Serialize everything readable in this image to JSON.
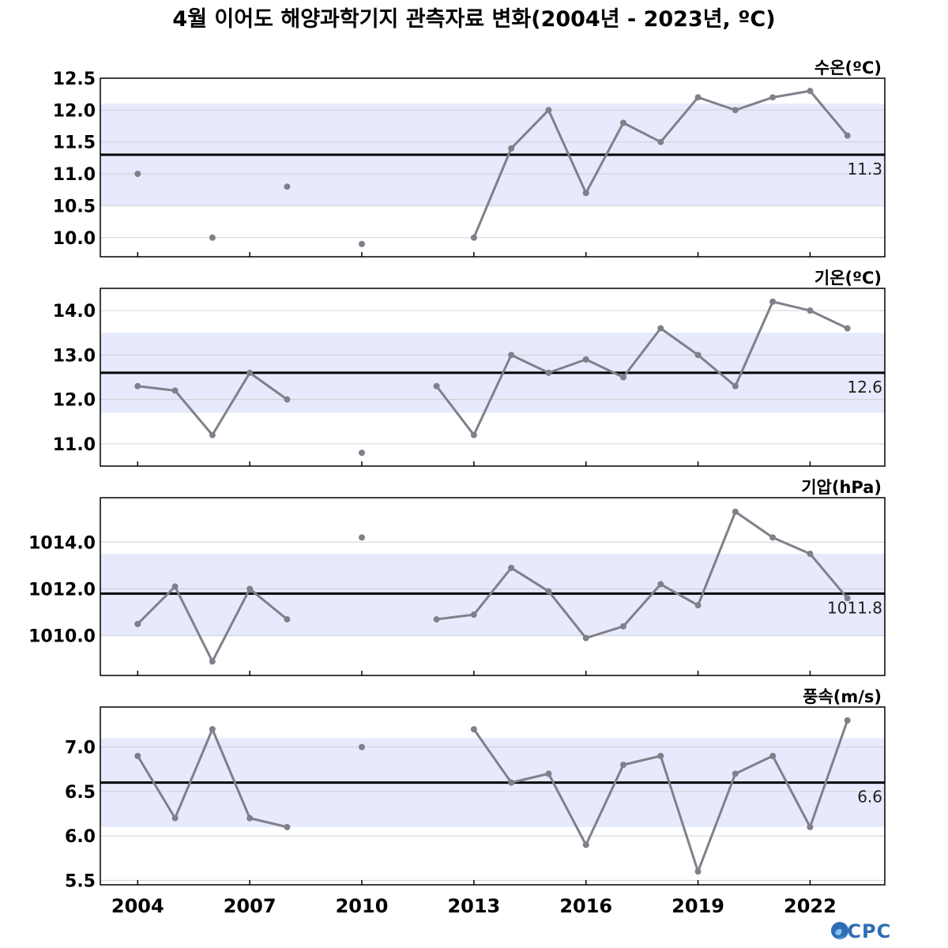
{
  "title": "4월 이어도 해양과학기지 관측자료 변화(2004년 - 2023년, ºC)",
  "logo": "OCPC",
  "colors": {
    "line": "#80808a",
    "point": "#80808a",
    "band": "#e6eafc",
    "mean": "#000000",
    "grid": "#d0d0d0"
  },
  "chart_data": [
    {
      "type": "line",
      "label": "수온(ºC)",
      "x": [
        2004,
        2005,
        2006,
        2007,
        2008,
        2009,
        2010,
        2011,
        2012,
        2013,
        2014,
        2015,
        2016,
        2017,
        2018,
        2019,
        2020,
        2021,
        2022,
        2023
      ],
      "values": [
        11.0,
        null,
        10.0,
        null,
        10.8,
        null,
        9.9,
        null,
        null,
        10.0,
        11.4,
        12.0,
        10.7,
        11.8,
        11.5,
        12.2,
        12.0,
        12.2,
        12.3,
        11.6
      ],
      "mean": 11.3,
      "mean_label": "11.3",
      "band": [
        10.5,
        12.1
      ],
      "ylim": [
        9.7,
        12.5
      ],
      "yticks": [
        10.0,
        10.5,
        11.0,
        11.5,
        12.0,
        12.5
      ],
      "ytick_labels": [
        "10.0",
        "10.5",
        "11.0",
        "11.5",
        "12.0",
        "12.5"
      ]
    },
    {
      "type": "line",
      "label": "기온(ºC)",
      "x": [
        2004,
        2005,
        2006,
        2007,
        2008,
        2009,
        2010,
        2011,
        2012,
        2013,
        2014,
        2015,
        2016,
        2017,
        2018,
        2019,
        2020,
        2021,
        2022,
        2023
      ],
      "values": [
        12.3,
        12.2,
        11.2,
        12.6,
        12.0,
        null,
        10.8,
        null,
        12.3,
        11.2,
        13.0,
        12.6,
        12.9,
        12.5,
        13.6,
        13.0,
        12.3,
        14.2,
        14.0,
        13.6
      ],
      "mean": 12.6,
      "mean_label": "12.6",
      "band": [
        11.7,
        13.5
      ],
      "ylim": [
        10.5,
        14.5
      ],
      "yticks": [
        11.0,
        12.0,
        13.0,
        14.0
      ],
      "ytick_labels": [
        "11.0",
        "12.0",
        "13.0",
        "14.0"
      ]
    },
    {
      "type": "line",
      "label": "기압(hPa)",
      "x": [
        2004,
        2005,
        2006,
        2007,
        2008,
        2009,
        2010,
        2011,
        2012,
        2013,
        2014,
        2015,
        2016,
        2017,
        2018,
        2019,
        2020,
        2021,
        2022,
        2023
      ],
      "values": [
        1010.5,
        1012.1,
        1008.9,
        1012.0,
        1010.7,
        null,
        1014.2,
        null,
        1010.7,
        1010.9,
        1012.9,
        1011.9,
        1009.9,
        1010.4,
        1012.2,
        1011.3,
        1015.3,
        1014.2,
        1013.5,
        1011.6
      ],
      "mean": 1011.8,
      "mean_label": "1011.8",
      "band": [
        1010.0,
        1013.5
      ],
      "ylim": [
        1008.3,
        1015.9
      ],
      "yticks": [
        1010.0,
        1012.0,
        1014.0
      ],
      "ytick_labels": [
        "1010.0",
        "1012.0",
        "1014.0"
      ]
    },
    {
      "type": "line",
      "label": "풍속(m/s)",
      "x": [
        2004,
        2005,
        2006,
        2007,
        2008,
        2009,
        2010,
        2011,
        2012,
        2013,
        2014,
        2015,
        2016,
        2017,
        2018,
        2019,
        2020,
        2021,
        2022,
        2023
      ],
      "values": [
        6.9,
        6.2,
        7.2,
        6.2,
        6.1,
        null,
        7.0,
        null,
        null,
        7.2,
        6.6,
        6.7,
        5.9,
        6.8,
        6.9,
        5.6,
        6.7,
        6.9,
        6.1,
        7.3
      ],
      "mean": 6.6,
      "mean_label": "6.6",
      "band": [
        6.1,
        7.1
      ],
      "ylim": [
        5.45,
        7.45
      ],
      "yticks": [
        5.5,
        6.0,
        6.5,
        7.0
      ],
      "ytick_labels": [
        "5.5",
        "6.0",
        "6.5",
        "7.0"
      ]
    }
  ],
  "xaxis": {
    "xlim": [
      2003,
      2024
    ],
    "ticks": [
      2004,
      2007,
      2010,
      2013,
      2016,
      2019,
      2022
    ],
    "tick_labels": [
      "2004",
      "2007",
      "2010",
      "2013",
      "2016",
      "2019",
      "2022"
    ]
  }
}
